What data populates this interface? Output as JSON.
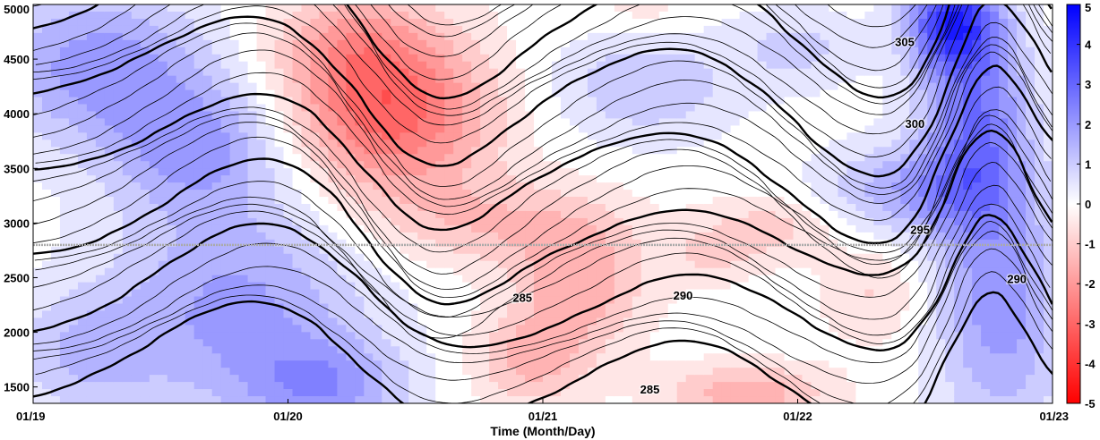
{
  "chart_data": {
    "type": "heatmap",
    "title": "",
    "xlabel": "Time (Month/Day)",
    "ylabel": "",
    "xlim": [
      0,
      4
    ],
    "ylim": [
      1350,
      5000
    ],
    "x_ticks": [
      {
        "value": 0,
        "label": "01/19"
      },
      {
        "value": 1,
        "label": "01/20"
      },
      {
        "value": 2,
        "label": "01/21"
      },
      {
        "value": 3,
        "label": "01/22"
      },
      {
        "value": 4,
        "label": "01/23"
      }
    ],
    "y_ticks": [
      1500,
      2000,
      2500,
      3000,
      3500,
      4000,
      4500,
      5000
    ],
    "colorbar": {
      "min": -5,
      "max": 5,
      "ticks": [
        5,
        4,
        3,
        2,
        1,
        0,
        -1,
        -2,
        -3,
        -4,
        -5
      ],
      "colors": [
        "#0000ff",
        "#ffffff",
        "#ff0000"
      ]
    },
    "reference_line": {
      "y": 2800,
      "color": "#aaaaaa"
    },
    "contour_labels": [
      {
        "text": "305",
        "x": 3.42,
        "y": 4620
      },
      {
        "text": "300",
        "x": 3.46,
        "y": 3870
      },
      {
        "text": "295",
        "x": 3.48,
        "y": 2900
      },
      {
        "text": "290",
        "x": 3.86,
        "y": 2450
      },
      {
        "text": "290",
        "x": 2.55,
        "y": 2300
      },
      {
        "text": "285",
        "x": 1.92,
        "y": 2280
      },
      {
        "text": "285",
        "x": 2.42,
        "y": 1440
      }
    ]
  }
}
